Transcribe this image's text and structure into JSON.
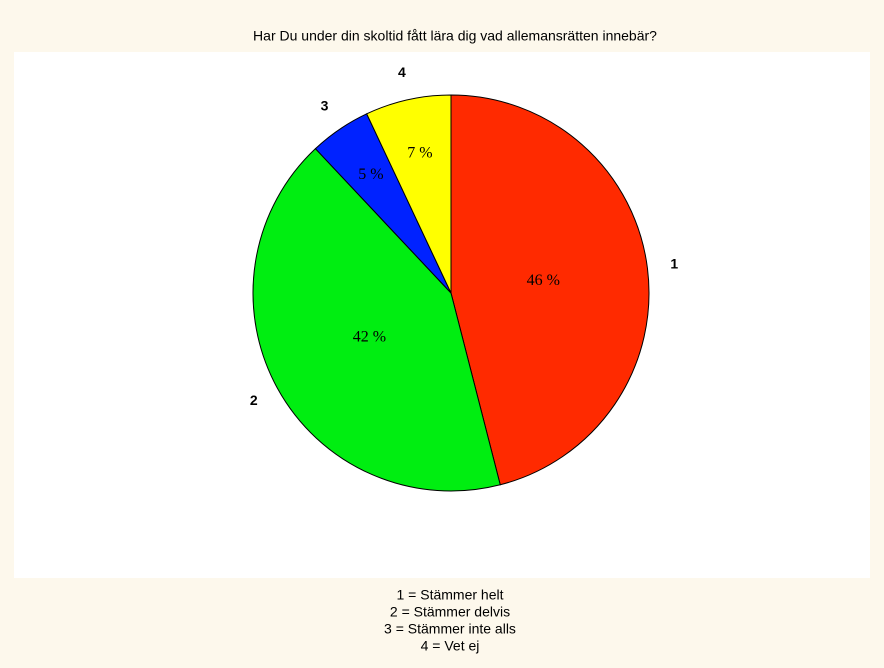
{
  "chart_data": {
    "type": "pie",
    "title": "Har Du under din skoltid fått lära dig vad allemansrätten innebär?",
    "categories": [
      "1",
      "2",
      "3",
      "4"
    ],
    "values": [
      46,
      42,
      5,
      7
    ],
    "value_labels": [
      "46 %",
      "42 %",
      "5 %",
      "7 %"
    ],
    "colors": [
      "#ff2a00",
      "#00ee11",
      "#0022ff",
      "#ffff00"
    ],
    "legend": [
      "1 = Stämmer helt",
      "2 = Stämmer delvis",
      "3 = Stämmer inte alls",
      "4 = Vet ej"
    ]
  }
}
